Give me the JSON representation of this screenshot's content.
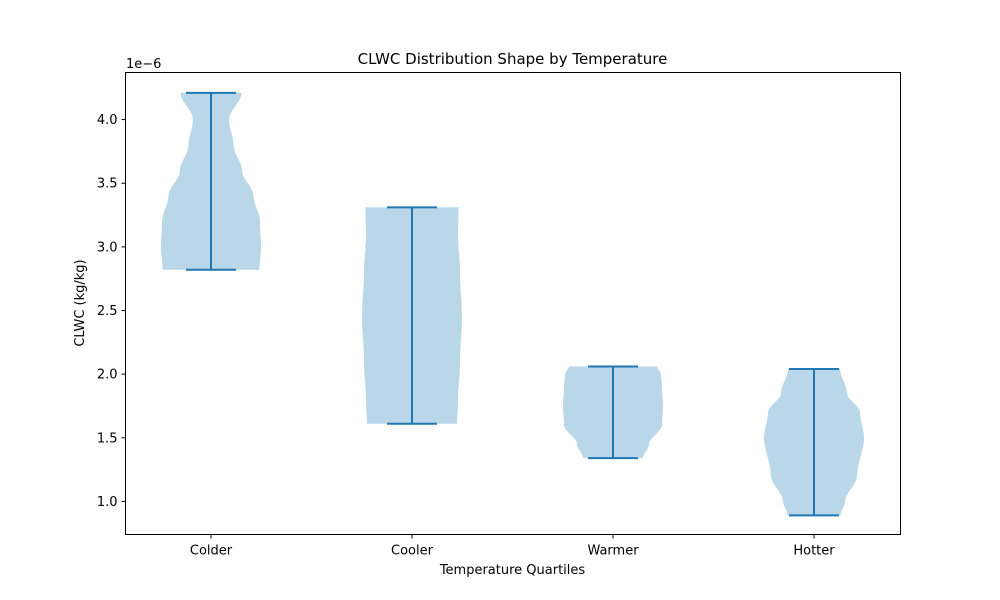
{
  "chart_data": {
    "type": "violin",
    "title": "CLWC Distribution Shape by Temperature",
    "xlabel": "Temperature Quartiles",
    "ylabel": "CLWC (kg/kg)",
    "y_offset_text": "1e−6",
    "y_scale_factor": 1e-06,
    "ylim": [
      0.74,
      4.37
    ],
    "yticks": [
      1.0,
      1.5,
      2.0,
      2.5,
      3.0,
      3.5,
      4.0
    ],
    "ytick_labels": [
      "1.0",
      "1.5",
      "2.0",
      "2.5",
      "3.0",
      "3.5",
      "4.0"
    ],
    "categories": [
      "Colder",
      "Cooler",
      "Warmer",
      "Hotter"
    ],
    "series": [
      {
        "category": "Colder",
        "min": 2.82,
        "max": 4.21,
        "density_profile": [
          [
            2.82,
            0.97
          ],
          [
            3.0,
            1.0
          ],
          [
            3.2,
            0.98
          ],
          [
            3.4,
            0.85
          ],
          [
            3.6,
            0.62
          ],
          [
            3.8,
            0.45
          ],
          [
            4.0,
            0.36
          ],
          [
            4.21,
            0.61
          ]
        ]
      },
      {
        "category": "Cooler",
        "min": 1.61,
        "max": 3.31,
        "density_profile": [
          [
            1.61,
            0.9
          ],
          [
            1.8,
            0.92
          ],
          [
            2.1,
            0.96
          ],
          [
            2.45,
            1.0
          ],
          [
            2.8,
            0.96
          ],
          [
            3.1,
            0.92
          ],
          [
            3.31,
            0.93
          ]
        ]
      },
      {
        "category": "Warmer",
        "min": 1.34,
        "max": 2.06,
        "density_profile": [
          [
            1.34,
            0.6
          ],
          [
            1.45,
            0.72
          ],
          [
            1.6,
            0.98
          ],
          [
            1.75,
            1.0
          ],
          [
            1.9,
            0.98
          ],
          [
            2.0,
            0.96
          ],
          [
            2.06,
            0.88
          ]
        ]
      },
      {
        "category": "Hotter",
        "min": 0.89,
        "max": 2.04,
        "density_profile": [
          [
            0.89,
            0.53
          ],
          [
            1.0,
            0.62
          ],
          [
            1.2,
            0.86
          ],
          [
            1.5,
            1.0
          ],
          [
            1.7,
            0.92
          ],
          [
            1.85,
            0.66
          ],
          [
            2.04,
            0.52
          ]
        ]
      }
    ],
    "colors": {
      "body": "#bad6e9",
      "lines": "#1f77b4",
      "axes": "#000000"
    },
    "grid": false,
    "legend": "none"
  }
}
